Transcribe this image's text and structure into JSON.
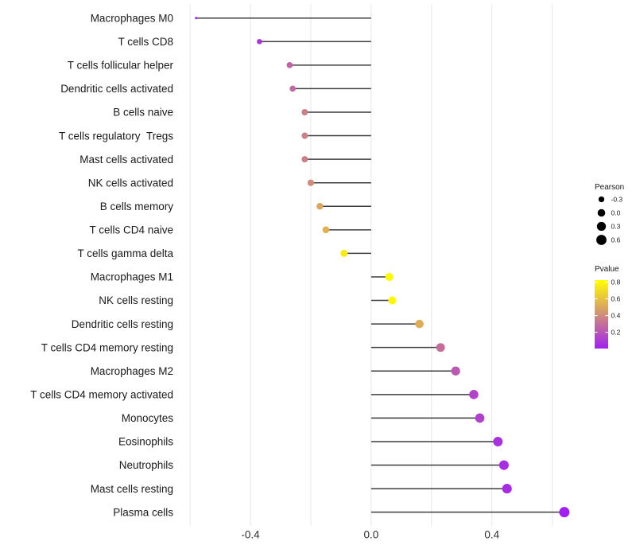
{
  "chart_data": {
    "type": "lollipop",
    "title": "",
    "xlabel": "",
    "ylabel": "",
    "x_ticks": [
      -0.4,
      0.0,
      0.4
    ],
    "x_tick_labels": [
      "-0.4",
      "0.0",
      "0.4"
    ],
    "x_minor_gridlines": [
      -0.6,
      -0.2,
      0.2,
      0.6
    ],
    "xlim": [
      -0.645,
      0.701
    ],
    "baseline": 0.0,
    "grid": "vertical-only",
    "legend_position": "right",
    "rows": [
      {
        "label": "Macrophages M0",
        "pearson": -0.58,
        "pvalue": 0.005
      },
      {
        "label": "T cells CD8",
        "pearson": -0.37,
        "pvalue": 0.09
      },
      {
        "label": "T cells follicular helper",
        "pearson": -0.27,
        "pvalue": 0.26
      },
      {
        "label": "Dendritic cells activated",
        "pearson": -0.26,
        "pvalue": 0.28
      },
      {
        "label": "B cells naive",
        "pearson": -0.22,
        "pvalue": 0.36
      },
      {
        "label": "T cells regulatory  Tregs",
        "pearson": -0.22,
        "pvalue": 0.36
      },
      {
        "label": "Mast cells activated",
        "pearson": -0.22,
        "pvalue": 0.36
      },
      {
        "label": "NK cells activated",
        "pearson": -0.2,
        "pvalue": 0.4
      },
      {
        "label": "B cells memory",
        "pearson": -0.17,
        "pvalue": 0.5
      },
      {
        "label": "T cells CD4 naive",
        "pearson": -0.15,
        "pvalue": 0.54
      },
      {
        "label": "T cells gamma delta",
        "pearson": -0.09,
        "pvalue": 0.75
      },
      {
        "label": "Macrophages M1",
        "pearson": 0.06,
        "pvalue": 0.8
      },
      {
        "label": "NK cells resting",
        "pearson": 0.07,
        "pvalue": 0.8
      },
      {
        "label": "Dendritic cells resting",
        "pearson": 0.16,
        "pvalue": 0.52
      },
      {
        "label": "T cells CD4 memory resting",
        "pearson": 0.23,
        "pvalue": 0.3
      },
      {
        "label": "Macrophages M2",
        "pearson": 0.28,
        "pvalue": 0.22
      },
      {
        "label": "T cells CD4 memory activated",
        "pearson": 0.34,
        "pvalue": 0.14
      },
      {
        "label": "Monocytes",
        "pearson": 0.36,
        "pvalue": 0.13
      },
      {
        "label": "Eosinophils",
        "pearson": 0.42,
        "pvalue": 0.07
      },
      {
        "label": "Neutrophils",
        "pearson": 0.44,
        "pvalue": 0.06
      },
      {
        "label": "Mast cells resting",
        "pearson": 0.45,
        "pvalue": 0.05
      },
      {
        "label": "Plasma cells",
        "pearson": 0.64,
        "pvalue": 0.005
      }
    ],
    "legend": {
      "size": {
        "title": "Pearson",
        "entries": [
          {
            "label": "-0.3",
            "value": -0.3
          },
          {
            "label": "0.0",
            "value": 0.0
          },
          {
            "label": "0.3",
            "value": 0.3
          },
          {
            "label": "0.6",
            "value": 0.6
          }
        ]
      },
      "color": {
        "title": "Pvalue",
        "domain": [
          0.005,
          0.825
        ],
        "ticks": [
          {
            "label": "0.8",
            "value": 0.8
          },
          {
            "label": "0.6",
            "value": 0.6
          },
          {
            "label": "0.4",
            "value": 0.4
          },
          {
            "label": "0.2",
            "value": 0.2
          }
        ],
        "low_color": "#a020f0",
        "high_color": "#ffff00"
      }
    },
    "size_scale": {
      "domain": [
        -0.59,
        0.64
      ]
    },
    "colors": {
      "segment": "#3d3d3d",
      "gridline": "#e7e7e7",
      "axis_tick_text": "#333333",
      "category_text": "#1a1a1a",
      "legend_text": "#1a1a1a",
      "legend_dot": "#000000",
      "background": "#ffffff"
    }
  }
}
